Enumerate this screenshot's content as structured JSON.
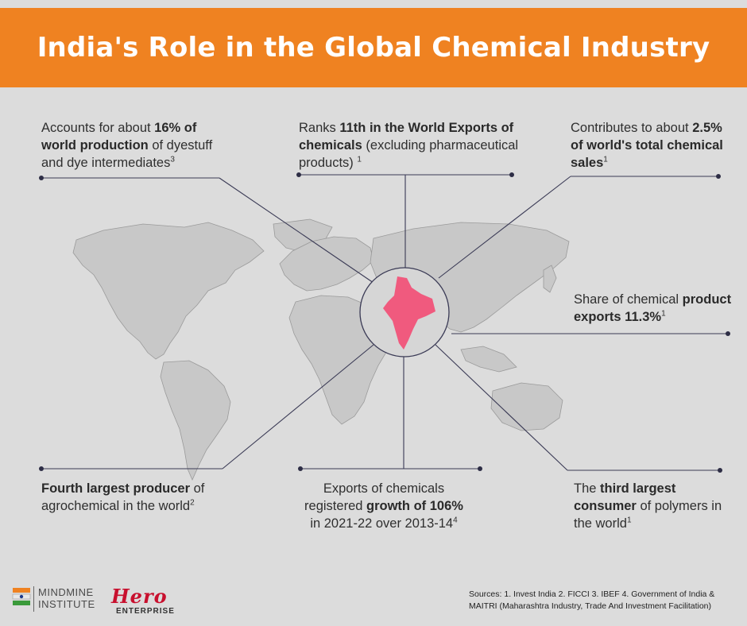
{
  "title": "India's Role in the Global Chemical Industry",
  "colors": {
    "header": "#ef8221",
    "background": "#dcdcdc",
    "india": "#f05a7e",
    "land": "#c8c8c8",
    "line": "#3a3a55"
  },
  "facts": {
    "top_left": {
      "pre": "Accounts for about ",
      "bold": "16% of world production",
      "post": " of dyestuff and dye intermediates",
      "sup": "3"
    },
    "top_center": {
      "pre": "Ranks ",
      "bold": "11th in the World Exports of chemicals",
      "post": " (excluding pharmaceutical products) ",
      "sup": "1"
    },
    "top_right": {
      "pre": "Contributes to about ",
      "bold": "2.5% of world's total chemical sales",
      "sup": "1"
    },
    "right": {
      "pre": "Share of chemical ",
      "bold": "product exports 11.3%",
      "sup": "1"
    },
    "bottom_left": {
      "bold": "Fourth largest producer",
      "post": " of agrochemical in the world",
      "sup": "2"
    },
    "bottom_center": {
      "pre": "Exports of chemicals registered ",
      "bold": "growth of 106%",
      "post": " in 2021-22 over 2013-14",
      "sup": "4"
    },
    "bottom_right": {
      "pre": "The ",
      "bold": "third largest consumer",
      "post": " of polymers in the world",
      "sup": "1"
    }
  },
  "footer": {
    "mindmine_line1": "MINDMINE",
    "mindmine_line2": "INSTITUTE",
    "hero_word": "Hero",
    "hero_sub": "ENTERPRISE",
    "sources": "Sources: 1. Invest India 2. FICCI 3. IBEF 4. Government of India & MAITRI (Maharashtra Industry, Trade And Investment Facilitation)"
  }
}
